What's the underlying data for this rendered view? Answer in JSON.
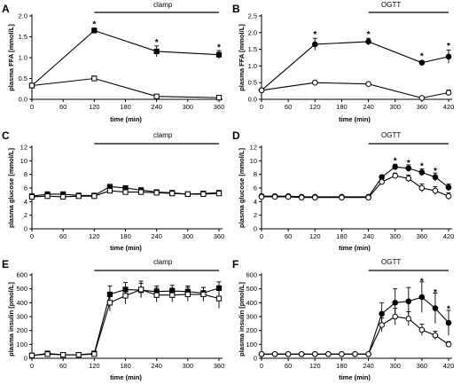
{
  "chart_data": [
    {
      "type": "line",
      "panel": "A",
      "xlabel": "time (min)",
      "ylabel": "plasma FFA [mmol/L]",
      "xticks": [
        0,
        60,
        120,
        180,
        240,
        300,
        360
      ],
      "yticks": [
        0.0,
        0.5,
        1.0,
        1.5,
        2.0
      ],
      "ytick_labels": [
        "0.0",
        "0.5",
        "1.0",
        "1.5",
        "2.0"
      ],
      "xlim": [
        0,
        360
      ],
      "ylim": [
        0,
        2.0
      ],
      "period_label": "clamp",
      "period": [
        120,
        360
      ],
      "series": [
        {
          "marker": "filled-square",
          "x": [
            0,
            120,
            240,
            360
          ],
          "y": [
            0.33,
            1.65,
            1.15,
            1.07
          ],
          "err": [
            0.03,
            0.06,
            0.13,
            0.1
          ]
        },
        {
          "marker": "open-square",
          "x": [
            0,
            120,
            240,
            360
          ],
          "y": [
            0.33,
            0.5,
            0.07,
            0.04
          ],
          "err": [
            0.03,
            0.06,
            0.05,
            0.02
          ]
        }
      ],
      "significance": [
        {
          "x": 120,
          "y": 1.82
        },
        {
          "x": 240,
          "y": 1.38
        },
        {
          "x": 360,
          "y": 1.27
        }
      ]
    },
    {
      "type": "line",
      "panel": "B",
      "xlabel": "time (min)",
      "ylabel": "plasma FFA [mmol/L]",
      "xticks": [
        0,
        60,
        120,
        180,
        240,
        300,
        360,
        420
      ],
      "yticks": [
        0.0,
        0.5,
        1.0,
        1.5,
        2.0,
        2.5
      ],
      "ytick_labels": [
        "0.0",
        "0.5",
        "1.0",
        "1.5",
        "2.0",
        "2.5"
      ],
      "xlim": [
        0,
        420
      ],
      "ylim": [
        0,
        2.5
      ],
      "period_label": "OGTT",
      "period": [
        240,
        420
      ],
      "series": [
        {
          "marker": "filled-circle",
          "x": [
            0,
            120,
            240,
            360,
            420
          ],
          "y": [
            0.27,
            1.65,
            1.73,
            1.1,
            1.28
          ],
          "err": [
            0.04,
            0.18,
            0.1,
            0.05,
            0.2
          ]
        },
        {
          "marker": "open-circle",
          "x": [
            0,
            120,
            240,
            360,
            420
          ],
          "y": [
            0.27,
            0.5,
            0.46,
            0.04,
            0.2
          ],
          "err": [
            0.04,
            0.06,
            0.04,
            0.03,
            0.08
          ]
        }
      ],
      "significance": [
        {
          "x": 120,
          "y": 1.97
        },
        {
          "x": 240,
          "y": 1.97
        },
        {
          "x": 360,
          "y": 1.31
        },
        {
          "x": 420,
          "y": 1.62
        }
      ]
    },
    {
      "type": "line",
      "panel": "C",
      "xlabel": "time (min)",
      "ylabel": "plasma glucose [mmol/L]",
      "xticks": [
        0,
        60,
        120,
        180,
        240,
        300,
        360
      ],
      "yticks": [
        0,
        2,
        4,
        6,
        8,
        10,
        12
      ],
      "ytick_labels": [
        "0",
        "2",
        "4",
        "6",
        "8",
        "10",
        "12"
      ],
      "xlim": [
        0,
        360
      ],
      "ylim": [
        0,
        12
      ],
      "period_label": "clamp",
      "period": [
        120,
        360
      ],
      "series": [
        {
          "marker": "filled-square",
          "x": [
            0,
            30,
            60,
            90,
            120,
            150,
            180,
            210,
            240,
            270,
            300,
            330,
            360
          ],
          "y": [
            4.8,
            5.1,
            5.1,
            4.9,
            4.9,
            6.2,
            6.0,
            5.7,
            5.4,
            5.3,
            5.1,
            5.2,
            5.3
          ],
          "err": [
            0.2,
            0.2,
            0.2,
            0.2,
            0.2,
            0.3,
            0.3,
            0.3,
            0.2,
            0.2,
            0.2,
            0.2,
            0.2
          ]
        },
        {
          "marker": "open-square",
          "x": [
            0,
            30,
            60,
            90,
            120,
            150,
            180,
            210,
            240,
            270,
            300,
            330,
            360
          ],
          "y": [
            4.7,
            4.8,
            4.7,
            4.8,
            4.8,
            5.6,
            5.4,
            5.4,
            5.3,
            5.2,
            5.1,
            5.1,
            5.2
          ],
          "err": [
            0.2,
            0.2,
            0.2,
            0.2,
            0.2,
            0.3,
            0.3,
            0.3,
            0.2,
            0.2,
            0.2,
            0.2,
            0.2
          ]
        }
      ]
    },
    {
      "type": "line",
      "panel": "D",
      "xlabel": "time (min)",
      "ylabel": "plasma glucose [mmol/L]",
      "xticks": [
        0,
        60,
        120,
        180,
        240,
        300,
        360,
        420
      ],
      "yticks": [
        0,
        2,
        4,
        6,
        8,
        10,
        12
      ],
      "ytick_labels": [
        "0",
        "2",
        "4",
        "6",
        "8",
        "10",
        "12"
      ],
      "xlim": [
        0,
        420
      ],
      "ylim": [
        0,
        12
      ],
      "period_label": "OGTT",
      "period": [
        240,
        420
      ],
      "series": [
        {
          "marker": "filled-circle",
          "x": [
            0,
            30,
            60,
            90,
            120,
            180,
            240,
            270,
            300,
            330,
            360,
            390,
            420
          ],
          "y": [
            4.8,
            4.8,
            4.8,
            4.7,
            4.7,
            4.7,
            4.7,
            7.6,
            9.1,
            8.9,
            8.3,
            7.6,
            6.1
          ],
          "err": [
            0.1,
            0.1,
            0.1,
            0.1,
            0.1,
            0.1,
            0.1,
            0.3,
            0.4,
            0.5,
            0.5,
            0.6,
            0.5
          ]
        },
        {
          "marker": "open-circle",
          "x": [
            0,
            30,
            60,
            90,
            120,
            180,
            240,
            270,
            300,
            330,
            360,
            390,
            420
          ],
          "y": [
            4.7,
            4.7,
            4.7,
            4.6,
            4.6,
            4.6,
            4.6,
            6.9,
            7.8,
            7.4,
            6.0,
            5.6,
            4.8
          ],
          "err": [
            0.1,
            0.1,
            0.1,
            0.1,
            0.1,
            0.1,
            0.1,
            0.3,
            0.4,
            0.5,
            0.6,
            0.6,
            0.5
          ]
        }
      ],
      "significance": [
        {
          "x": 300,
          "y": 10.1
        },
        {
          "x": 330,
          "y": 9.8
        },
        {
          "x": 360,
          "y": 9.3
        },
        {
          "x": 390,
          "y": 8.6
        }
      ]
    },
    {
      "type": "line",
      "panel": "E",
      "xlabel": "time (min)",
      "ylabel": "plasma insulin [pmol/L]",
      "xticks": [
        0,
        60,
        120,
        180,
        240,
        300,
        360
      ],
      "yticks": [
        0,
        100,
        200,
        300,
        400,
        500,
        600
      ],
      "ytick_labels": [
        "0",
        "100",
        "200",
        "300",
        "400",
        "500",
        "600"
      ],
      "xlim": [
        0,
        360
      ],
      "ylim": [
        0,
        600
      ],
      "period_label": "clamp",
      "period": [
        120,
        360
      ],
      "series": [
        {
          "marker": "filled-square",
          "x": [
            0,
            30,
            60,
            90,
            120,
            150,
            180,
            210,
            240,
            270,
            300,
            330,
            360
          ],
          "y": [
            20,
            35,
            25,
            25,
            35,
            460,
            495,
            490,
            480,
            485,
            480,
            470,
            505
          ],
          "err": [
            10,
            10,
            10,
            10,
            10,
            60,
            50,
            50,
            40,
            40,
            40,
            40,
            45
          ]
        },
        {
          "marker": "open-square",
          "x": [
            0,
            30,
            60,
            90,
            120,
            150,
            180,
            210,
            240,
            270,
            300,
            330,
            360
          ],
          "y": [
            20,
            30,
            25,
            25,
            30,
            400,
            450,
            495,
            455,
            455,
            460,
            460,
            430
          ],
          "err": [
            10,
            10,
            10,
            10,
            10,
            60,
            60,
            60,
            50,
            50,
            50,
            50,
            70
          ]
        }
      ]
    },
    {
      "type": "line",
      "panel": "F",
      "xlabel": "time (min)",
      "ylabel": "plasma insulin [pmol/L]",
      "xticks": [
        0,
        60,
        120,
        180,
        240,
        300,
        360,
        420
      ],
      "yticks": [
        0,
        100,
        200,
        300,
        400,
        500,
        600
      ],
      "ytick_labels": [
        "0",
        "100",
        "200",
        "300",
        "400",
        "500",
        "600"
      ],
      "xlim": [
        0,
        420
      ],
      "ylim": [
        0,
        600
      ],
      "period_label": "OGTT",
      "period": [
        240,
        420
      ],
      "series": [
        {
          "marker": "filled-circle",
          "x": [
            0,
            30,
            60,
            90,
            120,
            150,
            180,
            210,
            240,
            270,
            300,
            330,
            360,
            390,
            420
          ],
          "y": [
            30,
            30,
            30,
            30,
            30,
            30,
            30,
            30,
            30,
            320,
            400,
            410,
            440,
            360,
            255
          ],
          "err": [
            5,
            5,
            5,
            5,
            5,
            5,
            5,
            5,
            5,
            80,
            100,
            100,
            110,
            110,
            90
          ]
        },
        {
          "marker": "open-circle",
          "x": [
            0,
            30,
            60,
            90,
            120,
            150,
            180,
            210,
            240,
            270,
            300,
            330,
            360,
            390,
            420
          ],
          "y": [
            30,
            30,
            30,
            30,
            30,
            30,
            30,
            30,
            30,
            240,
            300,
            285,
            205,
            165,
            100
          ],
          "err": [
            5,
            5,
            5,
            5,
            5,
            5,
            5,
            5,
            5,
            50,
            60,
            50,
            40,
            30,
            20
          ]
        }
      ],
      "significance": [
        {
          "x": 360,
          "y": 560
        },
        {
          "x": 390,
          "y": 480
        },
        {
          "x": 420,
          "y": 360
        }
      ]
    }
  ],
  "star_symbol": "*"
}
